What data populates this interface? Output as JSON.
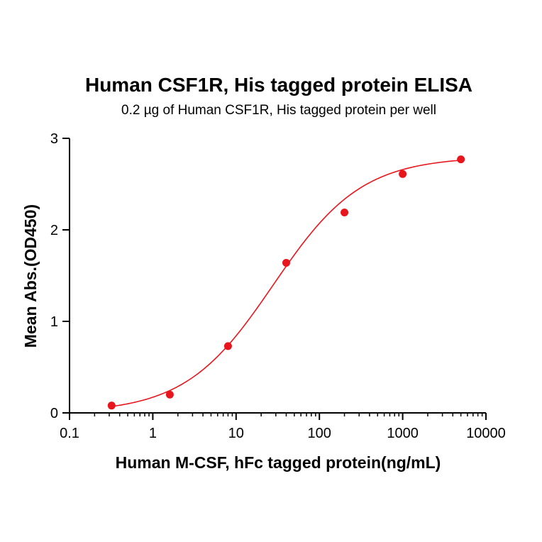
{
  "chart_data": {
    "type": "scatter",
    "title": "Human CSF1R, His tagged protein ELISA",
    "subtitle": "0.2 µg of Human CSF1R, His tagged protein per well",
    "xlabel": "Human M-CSF, hFc tagged protein(ng/mL)",
    "ylabel": "Mean Abs.(OD450)",
    "x_scale": "log",
    "xlim": [
      0.1,
      10000
    ],
    "ylim": [
      0,
      3
    ],
    "x_ticks": [
      0.1,
      1,
      10,
      100,
      1000,
      10000
    ],
    "x_tick_labels": [
      "0.1",
      "1",
      "10",
      "100",
      "1000",
      "10000"
    ],
    "y_ticks": [
      0,
      1,
      2,
      3
    ],
    "y_tick_labels": [
      "0",
      "1",
      "2",
      "3"
    ],
    "grid": false,
    "legend": "none",
    "color": "#e8161c",
    "series": [
      {
        "x": [
          0.32,
          1.6,
          8,
          40,
          200,
          1000,
          5000
        ],
        "y": [
          0.08,
          0.2,
          0.73,
          1.64,
          2.19,
          2.61,
          2.77
        ]
      }
    ],
    "fit_curve": {
      "model": "4PL",
      "bottom": 0.0,
      "top": 2.8,
      "ec50": 28,
      "hill": 0.82,
      "x_range": [
        0.32,
        5000
      ]
    }
  }
}
